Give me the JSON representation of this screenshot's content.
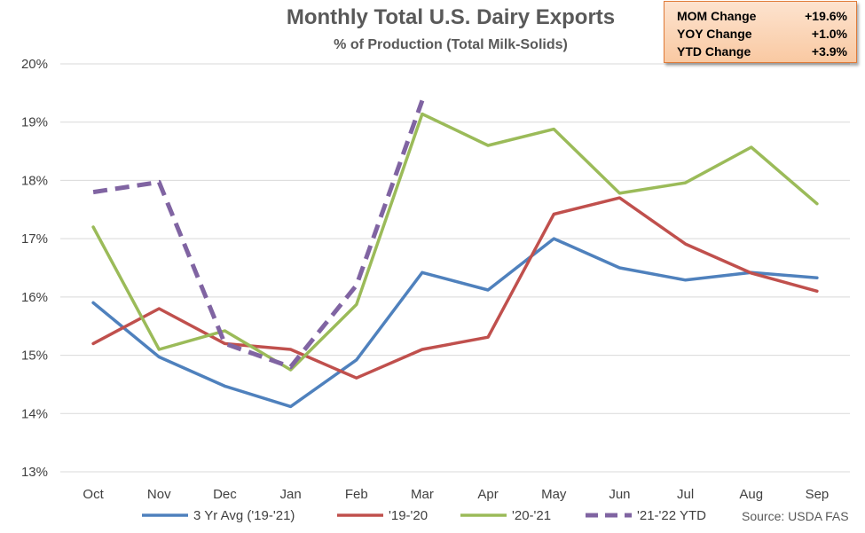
{
  "chart_data": {
    "type": "line",
    "title": "Monthly Total U.S. Dairy Exports",
    "subtitle": "% of Production (Total Milk-Solids)",
    "categories": [
      "Oct",
      "Nov",
      "Dec",
      "Jan",
      "Feb",
      "Mar",
      "Apr",
      "May",
      "Jun",
      "Jul",
      "Aug",
      "Sep"
    ],
    "ylim": [
      13,
      20
    ],
    "yticks": [
      13,
      14,
      15,
      16,
      17,
      18,
      19,
      20
    ],
    "ytick_labels": [
      "13%",
      "14%",
      "15%",
      "16%",
      "17%",
      "18%",
      "19%",
      "20%"
    ],
    "grid": true,
    "legend_position": "bottom",
    "series": [
      {
        "name": "3 Yr Avg ('19-'21)",
        "color": "#4f81bd",
        "dashed": false,
        "values": [
          15.9,
          14.97,
          14.47,
          14.12,
          14.92,
          16.42,
          16.12,
          17.0,
          16.5,
          16.29,
          16.42,
          16.33
        ]
      },
      {
        "name": "'19-'20",
        "color": "#c0504d",
        "dashed": false,
        "values": [
          15.2,
          15.8,
          15.2,
          15.1,
          14.61,
          15.1,
          15.31,
          17.42,
          17.7,
          16.91,
          16.41,
          16.1
        ]
      },
      {
        "name": "'20-'21",
        "color": "#9bbb59",
        "dashed": false,
        "values": [
          17.2,
          15.1,
          15.42,
          14.75,
          15.87,
          19.14,
          18.6,
          18.88,
          17.78,
          17.96,
          18.57,
          17.6
        ]
      },
      {
        "name": "'21-'22 YTD",
        "color": "#8064a2",
        "dashed": true,
        "values": [
          17.8,
          17.97,
          15.2,
          14.8,
          16.2,
          19.37,
          null,
          null,
          null,
          null,
          null,
          null
        ]
      }
    ]
  },
  "stats": [
    {
      "label": "MOM Change",
      "value": "+19.6%"
    },
    {
      "label": "YOY Change",
      "value": "+1.0%"
    },
    {
      "label": "YTD Change",
      "value": "+3.9%"
    }
  ],
  "source": "Source: USDA FAS"
}
